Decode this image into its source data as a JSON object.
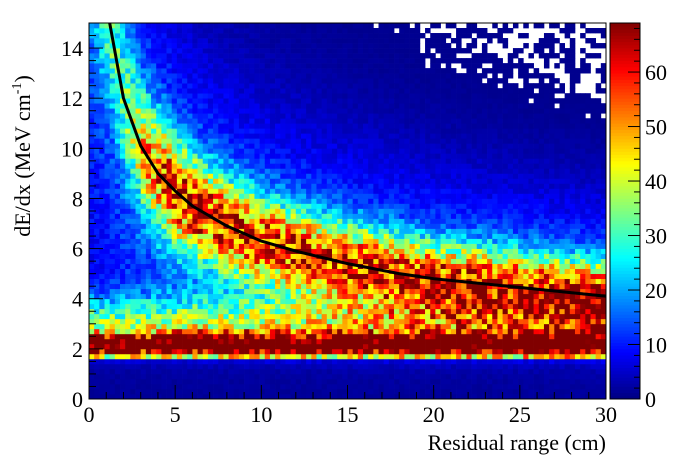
{
  "chart_data": {
    "type": "heatmap",
    "title": "",
    "xlabel": "Residual range (cm)",
    "ylabel_main": "dE/dx (MeV cm",
    "ylabel_sup": "-1",
    "ylabel_close": ")",
    "xlim": [
      0,
      30
    ],
    "ylim": [
      0,
      15
    ],
    "xticks": [
      0,
      5,
      10,
      15,
      20,
      25,
      30
    ],
    "yticks": [
      0,
      2,
      4,
      6,
      8,
      10,
      12,
      14
    ],
    "x_tick_labels": [
      "0",
      "5",
      "10",
      "15",
      "20",
      "25",
      "30"
    ],
    "y_tick_labels": [
      "0",
      "2",
      "4",
      "6",
      "8",
      "10",
      "12",
      "14"
    ],
    "bins": {
      "x": 100,
      "y": 75
    },
    "colorbar": {
      "range": [
        0,
        69
      ],
      "ticks": [
        0,
        10,
        20,
        30,
        40,
        50,
        60
      ],
      "tick_labels": [
        "0",
        "10",
        "20",
        "30",
        "40",
        "50",
        "60"
      ],
      "colormap": "jet"
    },
    "features": [
      {
        "name": "mip-band",
        "dEdx_center": 2.1,
        "peak_count": 65
      },
      {
        "name": "bragg-band",
        "follows": "fit-curve",
        "peak_count": 45
      }
    ],
    "fit_curve": {
      "color": "#000000",
      "x": [
        1.2,
        2,
        3,
        4,
        5,
        6,
        8,
        10,
        12,
        15,
        18,
        20,
        25,
        30
      ],
      "y": [
        15.0,
        12.0,
        10.1,
        9.0,
        8.3,
        7.7,
        6.9,
        6.3,
        5.9,
        5.4,
        5.0,
        4.8,
        4.45,
        4.1
      ]
    }
  }
}
